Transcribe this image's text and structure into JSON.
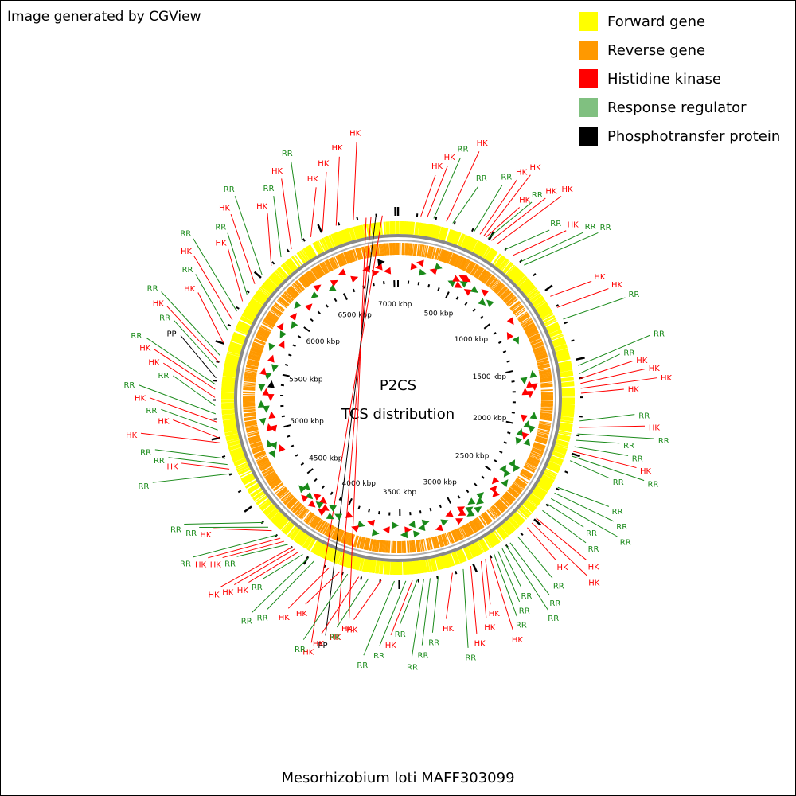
{
  "header": {
    "credit": "Image generated by CGView"
  },
  "legend": [
    {
      "label": "Forward gene",
      "color": "#ffff00"
    },
    {
      "label": "Reverse gene",
      "color": "#ff9900"
    },
    {
      "label": "Histidine kinase",
      "color": "#ff0000"
    },
    {
      "label": "Response regulator",
      "color": "#80c080"
    },
    {
      "label": "Phosphotransfer protein",
      "color": "#000000"
    }
  ],
  "map": {
    "title_line1": "P2CS",
    "title_line2": "TCS distribution",
    "organism": "Mesorhizobium loti MAFF303099",
    "genome_length_kbp": 7036,
    "tick_labels": [
      "500 kbp",
      "1000 kbp",
      "1500 kbp",
      "2000 kbp",
      "2500 kbp",
      "3000 kbp",
      "3500 kbp",
      "4000 kbp",
      "4500 kbp",
      "5000 kbp",
      "5500 kbp",
      "6000 kbp",
      "6500 kbp",
      "7000 kbp"
    ],
    "feature_labels": [
      {
        "pos": 6840,
        "type": "HK"
      },
      {
        "pos": 6870,
        "type": "HK"
      },
      {
        "pos": 6900,
        "type": "PP"
      },
      {
        "pos": 6940,
        "type": "HK"
      },
      {
        "pos": 140,
        "type": "HK"
      },
      {
        "pos": 180,
        "type": "HK"
      },
      {
        "pos": 220,
        "type": "RR"
      },
      {
        "pos": 300,
        "type": "HK"
      },
      {
        "pos": 340,
        "type": "RR"
      },
      {
        "pos": 480,
        "type": "RR"
      },
      {
        "pos": 520,
        "type": "HK"
      },
      {
        "pos": 545,
        "type": "HK"
      },
      {
        "pos": 560,
        "type": "HK"
      },
      {
        "pos": 575,
        "type": "RR"
      },
      {
        "pos": 600,
        "type": "HK"
      },
      {
        "pos": 640,
        "type": "HK"
      },
      {
        "pos": 700,
        "type": "RR"
      },
      {
        "pos": 760,
        "type": "HK"
      },
      {
        "pos": 820,
        "type": "RR"
      },
      {
        "pos": 850,
        "type": "RR"
      },
      {
        "pos": 1100,
        "type": "HK"
      },
      {
        "pos": 1180,
        "type": "HK"
      },
      {
        "pos": 1260,
        "type": "RR"
      },
      {
        "pos": 1560,
        "type": "RR"
      },
      {
        "pos": 1610,
        "type": "RR"
      },
      {
        "pos": 1640,
        "type": "HK"
      },
      {
        "pos": 1670,
        "type": "HK"
      },
      {
        "pos": 1700,
        "type": "HK"
      },
      {
        "pos": 1730,
        "type": "HK"
      },
      {
        "pos": 1900,
        "type": "RR"
      },
      {
        "pos": 1940,
        "type": "HK"
      },
      {
        "pos": 1980,
        "type": "RR"
      },
      {
        "pos": 2020,
        "type": "RR"
      },
      {
        "pos": 2060,
        "type": "RR"
      },
      {
        "pos": 2090,
        "type": "HK"
      },
      {
        "pos": 2120,
        "type": "RR"
      },
      {
        "pos": 2150,
        "type": "RR"
      },
      {
        "pos": 2330,
        "type": "RR"
      },
      {
        "pos": 2370,
        "type": "RR"
      },
      {
        "pos": 2410,
        "type": "RR"
      },
      {
        "pos": 2450,
        "type": "RR"
      },
      {
        "pos": 2500,
        "type": "RR"
      },
      {
        "pos": 2560,
        "type": "HK"
      },
      {
        "pos": 2600,
        "type": "HK"
      },
      {
        "pos": 2640,
        "type": "HK"
      },
      {
        "pos": 2720,
        "type": "RR"
      },
      {
        "pos": 2780,
        "type": "RR"
      },
      {
        "pos": 2810,
        "type": "RR"
      },
      {
        "pos": 2840,
        "type": "RR"
      },
      {
        "pos": 2870,
        "type": "RR"
      },
      {
        "pos": 2900,
        "type": "RR"
      },
      {
        "pos": 2930,
        "type": "HK"
      },
      {
        "pos": 2960,
        "type": "HK"
      },
      {
        "pos": 2990,
        "type": "HK"
      },
      {
        "pos": 3060,
        "type": "HK"
      },
      {
        "pos": 3110,
        "type": "RR"
      },
      {
        "pos": 3180,
        "type": "HK"
      },
      {
        "pos": 3270,
        "type": "RR"
      },
      {
        "pos": 3320,
        "type": "RR"
      },
      {
        "pos": 3360,
        "type": "RR"
      },
      {
        "pos": 3400,
        "type": "RR"
      },
      {
        "pos": 3430,
        "type": "HK"
      },
      {
        "pos": 3470,
        "type": "RR"
      },
      {
        "pos": 3540,
        "type": "RR"
      },
      {
        "pos": 3620,
        "type": "HK"
      },
      {
        "pos": 3700,
        "type": "RR"
      },
      {
        "pos": 3760,
        "type": "HK"
      },
      {
        "pos": 3830,
        "type": "RR"
      },
      {
        "pos": 3880,
        "type": "HK"
      },
      {
        "pos": 3950,
        "type": "HK"
      },
      {
        "pos": 4050,
        "type": "RR"
      },
      {
        "pos": 4090,
        "type": "RR"
      },
      {
        "pos": 4130,
        "type": "RR"
      },
      {
        "pos": 4160,
        "type": "HK"
      },
      {
        "pos": 4190,
        "type": "HK"
      },
      {
        "pos": 4210,
        "type": "HK"
      },
      {
        "pos": 4240,
        "type": "RR"
      },
      {
        "pos": 4270,
        "type": "HK"
      },
      {
        "pos": 4300,
        "type": "HK"
      },
      {
        "pos": 4330,
        "type": "RR"
      },
      {
        "pos": 4370,
        "type": "HK"
      },
      {
        "pos": 4400,
        "type": "RR"
      },
      {
        "pos": 4440,
        "type": "RR"
      },
      {
        "pos": 4800,
        "type": "RR"
      },
      {
        "pos": 4830,
        "type": "HK"
      },
      {
        "pos": 4860,
        "type": "RR"
      },
      {
        "pos": 4900,
        "type": "RR"
      },
      {
        "pos": 5000,
        "type": "HK"
      },
      {
        "pos": 5030,
        "type": "HK"
      },
      {
        "pos": 5080,
        "type": "RR"
      },
      {
        "pos": 5130,
        "type": "HK"
      },
      {
        "pos": 5180,
        "type": "RR"
      },
      {
        "pos": 5230,
        "type": "RR"
      },
      {
        "pos": 5280,
        "type": "HK"
      },
      {
        "pos": 5330,
        "type": "HK"
      },
      {
        "pos": 5360,
        "type": "RR"
      },
      {
        "pos": 5400,
        "type": "PP"
      },
      {
        "pos": 5460,
        "type": "RR"
      },
      {
        "pos": 5500,
        "type": "HK"
      },
      {
        "pos": 5540,
        "type": "RR"
      },
      {
        "pos": 5620,
        "type": "HK"
      },
      {
        "pos": 5700,
        "type": "RR"
      },
      {
        "pos": 5770,
        "type": "HK"
      },
      {
        "pos": 5830,
        "type": "RR"
      },
      {
        "pos": 5900,
        "type": "HK"
      },
      {
        "pos": 5950,
        "type": "RR"
      },
      {
        "pos": 6030,
        "type": "HK"
      },
      {
        "pos": 6100,
        "type": "RR"
      },
      {
        "pos": 6180,
        "type": "HK"
      },
      {
        "pos": 6260,
        "type": "RR"
      },
      {
        "pos": 6340,
        "type": "HK"
      },
      {
        "pos": 6420,
        "type": "RR"
      },
      {
        "pos": 6480,
        "type": "HK"
      },
      {
        "pos": 6560,
        "type": "HK"
      },
      {
        "pos": 6650,
        "type": "HK"
      },
      {
        "pos": 6760,
        "type": "HK"
      }
    ]
  },
  "colors": {
    "forward": "#ffff00",
    "reverse": "#ff9900",
    "hk": "#ff0000",
    "rr_line": "#1a8a1a",
    "rr_text": "#1a8a1a",
    "pp": "#000000",
    "backbone": "#888888"
  }
}
